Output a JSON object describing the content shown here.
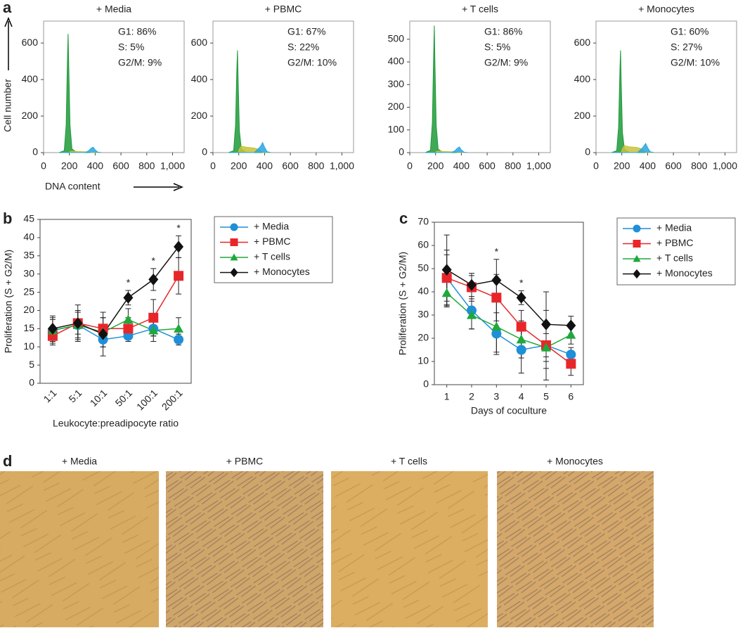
{
  "panel_labels": [
    "a",
    "b",
    "c",
    "d"
  ],
  "chart_data": [
    {
      "type": "area",
      "title": "+ Media",
      "ylabel": "Cell number",
      "xlabel": "DNA content",
      "x": [
        120,
        160,
        175,
        185,
        190,
        195,
        205,
        220,
        260,
        320,
        350,
        370,
        385,
        400,
        420,
        450
      ],
      "series": [
        {
          "color": "#1f9a3a",
          "values": [
            0,
            10,
            150,
            500,
            650,
            480,
            150,
            20,
            0,
            0,
            0,
            0,
            0,
            0,
            0,
            0
          ]
        },
        {
          "color": "#c9c23a",
          "values": [
            0,
            0,
            0,
            0,
            0,
            0,
            5,
            8,
            6,
            5,
            3,
            0,
            0,
            0,
            0,
            0
          ]
        },
        {
          "color": "#2aa6e0",
          "values": [
            0,
            0,
            0,
            0,
            0,
            0,
            0,
            0,
            0,
            0,
            10,
            25,
            30,
            15,
            3,
            0
          ]
        }
      ],
      "xlim": [
        0,
        1090
      ],
      "xticks": [
        0,
        200,
        400,
        600,
        800,
        {
          "value": 1000,
          "label": "1,000"
        }
      ],
      "ylim": [
        0,
        720
      ],
      "yticks": [
        0,
        200,
        400,
        600
      ],
      "annotations": [
        "G1: 86%",
        "S: 5%",
        "G2/M: 9%"
      ]
    },
    {
      "type": "area",
      "title": "+ PBMC",
      "x": [
        120,
        160,
        175,
        185,
        190,
        195,
        205,
        220,
        260,
        320,
        350,
        370,
        385,
        400,
        420,
        450
      ],
      "series": [
        {
          "color": "#1f9a3a",
          "values": [
            0,
            10,
            150,
            450,
            560,
            400,
            120,
            20,
            0,
            0,
            0,
            0,
            0,
            0,
            0,
            0
          ]
        },
        {
          "color": "#c9c23a",
          "values": [
            0,
            0,
            0,
            0,
            0,
            0,
            20,
            35,
            30,
            25,
            20,
            10,
            0,
            0,
            0,
            0
          ]
        },
        {
          "color": "#2aa6e0",
          "values": [
            0,
            0,
            0,
            0,
            0,
            0,
            0,
            0,
            0,
            0,
            20,
            35,
            55,
            30,
            5,
            0
          ]
        }
      ],
      "xlim": [
        0,
        1090
      ],
      "xticks": [
        0,
        200,
        400,
        600,
        800,
        {
          "value": 1000,
          "label": "1,000"
        }
      ],
      "ylim": [
        0,
        720
      ],
      "yticks": [
        0,
        200,
        400,
        600
      ],
      "annotations": [
        "G1: 67%",
        "S: 22%",
        "G2/M: 10%"
      ]
    },
    {
      "type": "area",
      "title": "+ T cells",
      "x": [
        120,
        160,
        175,
        185,
        190,
        195,
        205,
        220,
        260,
        320,
        350,
        370,
        385,
        400,
        420,
        450
      ],
      "series": [
        {
          "color": "#1f9a3a",
          "values": [
            0,
            10,
            130,
            420,
            560,
            400,
            120,
            15,
            0,
            0,
            0,
            0,
            0,
            0,
            0,
            0
          ]
        },
        {
          "color": "#c9c23a",
          "values": [
            0,
            0,
            0,
            0,
            0,
            0,
            4,
            7,
            5,
            4,
            3,
            0,
            0,
            0,
            0,
            0
          ]
        },
        {
          "color": "#2aa6e0",
          "values": [
            0,
            0,
            0,
            0,
            0,
            0,
            0,
            0,
            0,
            0,
            8,
            20,
            25,
            12,
            2,
            0
          ]
        }
      ],
      "xlim": [
        0,
        1090
      ],
      "xticks": [
        0,
        200,
        400,
        600,
        800,
        {
          "value": 1000,
          "label": "1,000"
        }
      ],
      "ylim": [
        0,
        580
      ],
      "yticks": [
        0,
        100,
        200,
        300,
        400,
        500
      ],
      "annotations": [
        "G1: 86%",
        "S: 5%",
        "G2/M: 9%"
      ]
    },
    {
      "type": "area",
      "title": "+ Monocytes",
      "x": [
        120,
        160,
        175,
        185,
        190,
        195,
        205,
        220,
        260,
        320,
        350,
        370,
        385,
        400,
        420,
        450
      ],
      "series": [
        {
          "color": "#1f9a3a",
          "values": [
            0,
            10,
            140,
            440,
            560,
            390,
            110,
            20,
            0,
            0,
            0,
            0,
            0,
            0,
            0,
            0
          ]
        },
        {
          "color": "#c9c23a",
          "values": [
            0,
            0,
            0,
            0,
            0,
            0,
            22,
            38,
            32,
            28,
            22,
            10,
            0,
            0,
            0,
            0
          ]
        },
        {
          "color": "#2aa6e0",
          "values": [
            0,
            0,
            0,
            0,
            0,
            0,
            0,
            0,
            0,
            0,
            18,
            35,
            50,
            28,
            5,
            0
          ]
        }
      ],
      "xlim": [
        0,
        1090
      ],
      "xticks": [
        0,
        200,
        400,
        600,
        800,
        {
          "value": 1000,
          "label": "1,000"
        }
      ],
      "ylim": [
        0,
        720
      ],
      "yticks": [
        0,
        200,
        400,
        600
      ],
      "annotations": [
        "G1: 60%",
        "S: 27%",
        "G2/M: 10%"
      ]
    },
    {
      "type": "line",
      "ylabel": "Proliferation (S + G2/M)",
      "xlabel": "Leukocyte:preadipocyte ratio",
      "categories": [
        "1:1",
        "5:1",
        "10:1",
        "50:1",
        "100:1",
        "200:1"
      ],
      "series": [
        {
          "name": "+ Media",
          "color": "#1f8fd8",
          "marker": "circle",
          "values": [
            14.5,
            16,
            12,
            13,
            15,
            12
          ],
          "errors": [
            3.5,
            4,
            2,
            1.5,
            2,
            1.5
          ]
        },
        {
          "name": "+ PBMC",
          "color": "#e8262a",
          "marker": "square",
          "values": [
            13,
            16.5,
            15,
            15,
            18,
            29.5
          ],
          "errors": [
            2.5,
            3,
            3,
            3,
            5,
            5
          ]
        },
        {
          "name": "+ T cells",
          "color": "#1fa83b",
          "marker": "triangle",
          "values": [
            14.5,
            16,
            14,
            17.5,
            14.5,
            15
          ],
          "errors": [
            3,
            3.5,
            4,
            3,
            3,
            3
          ]
        },
        {
          "name": "+ Monocytes",
          "color": "#111111",
          "marker": "diamond",
          "values": [
            15,
            16.5,
            13.5,
            23.5,
            28.5,
            37.5
          ],
          "errors": [
            3.5,
            5,
            6,
            2,
            3,
            3
          ]
        }
      ],
      "significance": [
        null,
        null,
        null,
        "*",
        "*",
        "*"
      ],
      "ylim": [
        0,
        45
      ],
      "yticks": [
        0,
        5,
        10,
        15,
        20,
        25,
        30,
        35,
        40,
        45
      ],
      "legend": "right"
    },
    {
      "type": "line",
      "ylabel": "Proliferation (S + G2/M)",
      "xlabel": "Days of coculture",
      "x": [
        1,
        2,
        3,
        4,
        5,
        6
      ],
      "series": [
        {
          "name": "+ Media",
          "color": "#1f8fd8",
          "marker": "circle",
          "values": [
            46,
            32,
            22,
            15,
            17,
            13
          ],
          "errors": [
            12,
            8,
            9,
            10,
            15,
            3
          ]
        },
        {
          "name": "+ PBMC",
          "color": "#e8262a",
          "marker": "square",
          "values": [
            46,
            42,
            37.5,
            25,
            17,
            9
          ],
          "errors": [
            10,
            5,
            10,
            7,
            10,
            5
          ]
        },
        {
          "name": "+ T cells",
          "color": "#1fa83b",
          "marker": "triangle",
          "values": [
            39.5,
            30,
            25,
            19.5,
            16,
            21.5
          ],
          "errors": [
            6,
            6,
            11,
            8,
            6,
            4
          ]
        },
        {
          "name": "+ Monocytes",
          "color": "#111111",
          "marker": "diamond",
          "values": [
            49.5,
            43,
            45,
            37.5,
            26,
            25.5
          ],
          "errors": [
            15,
            5,
            9,
            3,
            14,
            4
          ]
        }
      ],
      "significance": [
        null,
        null,
        "*",
        "*",
        null,
        null
      ],
      "xlim": [
        0.5,
        6.5
      ],
      "xticks": [
        1,
        2,
        3,
        4,
        5,
        6
      ],
      "ylim": [
        0,
        70
      ],
      "yticks": [
        0,
        10,
        20,
        30,
        40,
        50,
        60,
        70
      ],
      "legend": "right"
    }
  ],
  "micrographs": {
    "titles": [
      "+ Media",
      "+ PBMC",
      "+ T cells",
      "+ Monocytes"
    ]
  }
}
